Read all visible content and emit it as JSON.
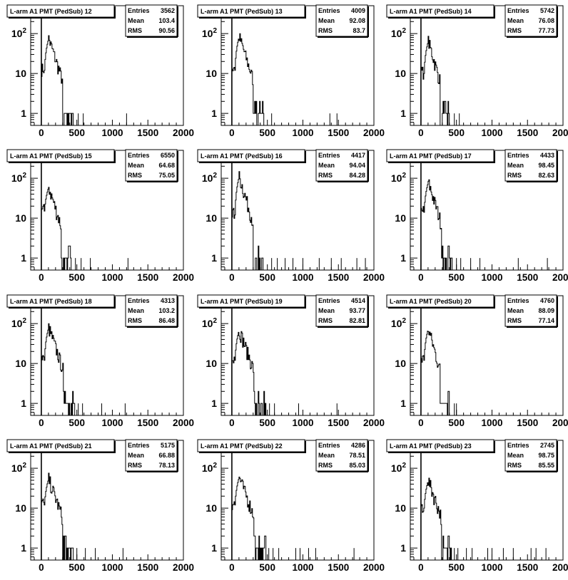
{
  "chart_data": [
    {
      "type": "histogram",
      "title": "L-arm A1 PMT (PedSub) 12",
      "stats": {
        "Entries_label": "Entries",
        "Mean_label": "Mean",
        "RMS_label": "RMS",
        "entries": "3562",
        "mean": "103.4",
        "rms": "90.56"
      },
      "xlim": [
        -150,
        2000
      ],
      "ylog": true,
      "ylim": [
        0.5,
        500
      ],
      "x_ticks": [
        "0",
        "500",
        "1000",
        "1500",
        "2000"
      ],
      "y_ticks": [
        "1",
        "10",
        "10^2"
      ],
      "peak": {
        "x": 100,
        "y": 75
      },
      "tail_end": 450,
      "sparse_x": [
        520,
        590,
        1200
      ],
      "low_pk": 12,
      "ped_x": 0
    },
    {
      "type": "histogram",
      "title": "L-arm A1 PMT (PedSub) 13",
      "stats": {
        "Entries_label": "Entries",
        "Mean_label": "Mean",
        "RMS_label": "RMS",
        "entries": "4009",
        "mean": "92.08",
        "rms": "83.7"
      },
      "xlim": [
        -150,
        2000
      ],
      "ylog": true,
      "ylim": [
        0.5,
        500
      ],
      "x_ticks": [
        "0",
        "500",
        "1000",
        "1500",
        "2000"
      ],
      "y_ticks": [
        "1",
        "10",
        "10^2"
      ],
      "peak": {
        "x": 100,
        "y": 85
      },
      "tail_end": 450,
      "sparse_x": [
        560,
        1380,
        1480
      ],
      "low_pk": 12,
      "ped_x": 0
    },
    {
      "type": "histogram",
      "title": "L-arm A1 PMT (PedSub) 14",
      "stats": {
        "Entries_label": "Entries",
        "Mean_label": "Mean",
        "RMS_label": "RMS",
        "entries": "5742",
        "mean": "76.08",
        "rms": "77.73"
      },
      "xlim": [
        -150,
        2000
      ],
      "ylog": true,
      "ylim": [
        0.5,
        500
      ],
      "x_ticks": [
        "0",
        "500",
        "1000",
        "1500",
        "2000"
      ],
      "y_ticks": [
        "1",
        "10",
        "10^2"
      ],
      "peak": {
        "x": 100,
        "y": 65
      },
      "tail_end": 400,
      "sparse_x": [
        470,
        540
      ],
      "low_pk": 10,
      "ped_x": 0
    },
    {
      "type": "histogram",
      "title": "L-arm A1 PMT (PedSub) 15",
      "stats": {
        "Entries_label": "Entries",
        "Mean_label": "Mean",
        "RMS_label": "RMS",
        "entries": "6550",
        "mean": "64.68",
        "rms": "75.05"
      },
      "xlim": [
        -150,
        2000
      ],
      "ylog": true,
      "ylim": [
        0.5,
        500
      ],
      "x_ticks": [
        "0",
        "500",
        "1000",
        "1500",
        "2000"
      ],
      "y_ticks": [
        "1",
        "10",
        "10^2"
      ],
      "peak": {
        "x": 100,
        "y": 60
      },
      "tail_end": 420,
      "sparse_x": [
        480,
        560,
        690,
        1220
      ],
      "low_pk": 15,
      "ped_x": 0
    },
    {
      "type": "histogram",
      "title": "L-arm A1 PMT (PedSub) 16",
      "stats": {
        "Entries_label": "Entries",
        "Mean_label": "Mean",
        "RMS_label": "RMS",
        "entries": "4417",
        "mean": "94.04",
        "rms": "84.28"
      },
      "xlim": [
        -150,
        2000
      ],
      "ylog": true,
      "ylim": [
        0.5,
        500
      ],
      "x_ticks": [
        "0",
        "500",
        "1000",
        "1500",
        "2000"
      ],
      "y_ticks": [
        "1",
        "10",
        "10^2"
      ],
      "peak": {
        "x": 100,
        "y": 110
      },
      "tail_end": 450,
      "sparse_x": [
        560,
        640,
        750,
        860,
        1000,
        1230,
        1400,
        1540,
        1760,
        1880
      ],
      "low_pk": 12,
      "ped_x": 0
    },
    {
      "type": "histogram",
      "title": "L-arm A1 PMT (PedSub) 17",
      "stats": {
        "Entries_label": "Entries",
        "Mean_label": "Mean",
        "RMS_label": "RMS",
        "entries": "4433",
        "mean": "98.45",
        "rms": "82.63"
      },
      "xlim": [
        -150,
        2000
      ],
      "ylog": true,
      "ylim": [
        0.5,
        500
      ],
      "x_ticks": [
        "0",
        "500",
        "1000",
        "1500",
        "2000"
      ],
      "y_ticks": [
        "1",
        "10",
        "10^2"
      ],
      "peak": {
        "x": 100,
        "y": 80
      },
      "tail_end": 440,
      "sparse_x": [
        500,
        560,
        700,
        830,
        1370,
        1780
      ],
      "low_pk": 14,
      "ped_x": 0
    },
    {
      "type": "histogram",
      "title": "L-arm A1 PMT (PedSub) 18",
      "stats": {
        "Entries_label": "Entries",
        "Mean_label": "Mean",
        "RMS_label": "RMS",
        "entries": "4313",
        "mean": "103.2",
        "rms": "86.48"
      },
      "xlim": [
        -150,
        2000
      ],
      "ylog": true,
      "ylim": [
        0.5,
        500
      ],
      "x_ticks": [
        "0",
        "500",
        "1000",
        "1500",
        "2000"
      ],
      "y_ticks": [
        "1",
        "10",
        "10^2"
      ],
      "peak": {
        "x": 100,
        "y": 80
      },
      "tail_end": 470,
      "sparse_x": [
        520,
        580,
        850,
        1180
      ],
      "low_pk": 12,
      "ped_x": 0
    },
    {
      "type": "histogram",
      "title": "L-arm A1 PMT (PedSub) 19",
      "stats": {
        "Entries_label": "Entries",
        "Mean_label": "Mean",
        "RMS_label": "RMS",
        "entries": "4514",
        "mean": "93.77",
        "rms": "82.81"
      },
      "xlim": [
        -150,
        2000
      ],
      "ylog": true,
      "ylim": [
        0.5,
        500
      ],
      "x_ticks": [
        "0",
        "500",
        "1000",
        "1500",
        "2000"
      ],
      "y_ticks": [
        "1",
        "10",
        "10^2"
      ],
      "peak": {
        "x": 100,
        "y": 70
      },
      "tail_end": 480,
      "sparse_x": [
        530,
        600,
        940,
        1480
      ],
      "low_pk": 12,
      "ped_x": 0
    },
    {
      "type": "histogram",
      "title": "L-arm A1 PMT (PedSub) 20",
      "stats": {
        "Entries_label": "Entries",
        "Mean_label": "Mean",
        "RMS_label": "RMS",
        "entries": "4760",
        "mean": "88.09",
        "rms": "77.14"
      },
      "xlim": [
        -150,
        2000
      ],
      "ylog": true,
      "ylim": [
        0.5,
        500
      ],
      "x_ticks": [
        "0",
        "500",
        "1000",
        "1500",
        "2000"
      ],
      "y_ticks": [
        "1",
        "10",
        "10^2"
      ],
      "peak": {
        "x": 100,
        "y": 75
      },
      "tail_end": 400,
      "sparse_x": [
        470,
        500
      ],
      "low_pk": 12,
      "ped_x": 0
    },
    {
      "type": "histogram",
      "title": "L-arm A1 PMT (PedSub) 21",
      "stats": {
        "Entries_label": "Entries",
        "Mean_label": "Mean",
        "RMS_label": "RMS",
        "entries": "5175",
        "mean": "66.88",
        "rms": "78.13"
      },
      "xlim": [
        -150,
        2000
      ],
      "ylog": true,
      "ylim": [
        0.5,
        500
      ],
      "x_ticks": [
        "0",
        "500",
        "1000",
        "1500",
        "2000"
      ],
      "y_ticks": [
        "1",
        "10",
        "10^2"
      ],
      "peak": {
        "x": 100,
        "y": 55
      },
      "tail_end": 450,
      "sparse_x": [
        500,
        620,
        760,
        1150
      ],
      "low_pk": 12,
      "ped_x": 0
    },
    {
      "type": "histogram",
      "title": "L-arm A1 PMT (PedSub) 22",
      "stats": {
        "Entries_label": "Entries",
        "Mean_label": "Mean",
        "RMS_label": "RMS",
        "entries": "4286",
        "mean": "78.51",
        "rms": "85.03"
      },
      "xlim": [
        -150,
        2000
      ],
      "ylog": true,
      "ylim": [
        0.5,
        500
      ],
      "x_ticks": [
        "0",
        "500",
        "1000",
        "1500",
        "2000"
      ],
      "y_ticks": [
        "1",
        "10",
        "10^2"
      ],
      "peak": {
        "x": 100,
        "y": 60
      },
      "tail_end": 480,
      "sparse_x": [
        520,
        580,
        660,
        900,
        960,
        1080,
        1180,
        1720
      ],
      "low_pk": 12,
      "ped_x": 0
    },
    {
      "type": "histogram",
      "title": "L-arm A1 PMT (PedSub) 23",
      "stats": {
        "Entries_label": "Entries",
        "Mean_label": "Mean",
        "RMS_label": "RMS",
        "entries": "2745",
        "mean": "98.75",
        "rms": "85.55"
      },
      "xlim": [
        -150,
        2000
      ],
      "ylog": true,
      "ylim": [
        0.5,
        500
      ],
      "x_ticks": [
        "0",
        "500",
        "1000",
        "1500",
        "2000"
      ],
      "y_ticks": [
        "1",
        "10",
        "10^2"
      ],
      "peak": {
        "x": 100,
        "y": 50
      },
      "tail_end": 440,
      "sparse_x": [
        470,
        520,
        640,
        720,
        940,
        1000,
        1160,
        1300,
        1550,
        1620,
        1760
      ],
      "low_pk": 10,
      "ped_x": 0
    }
  ]
}
